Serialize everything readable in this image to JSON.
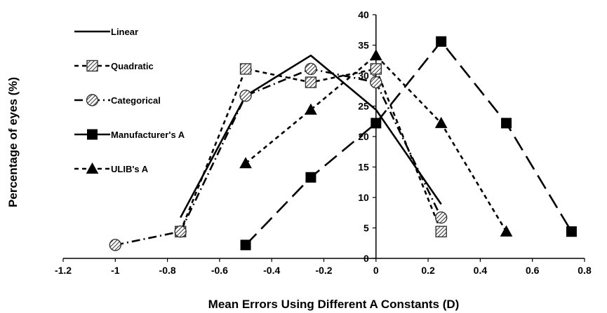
{
  "chart_data": {
    "type": "line",
    "title": "",
    "xlabel": "Mean Errors Using Different A Constants (D)",
    "ylabel": "Percentage of eyes (%)",
    "xlim": [
      -1.2,
      0.8
    ],
    "ylim": [
      0,
      40
    ],
    "xticks": [
      "-1.2",
      "-1",
      "-0.8",
      "-0.6",
      "-0.4",
      "-0.2",
      "0",
      "0.2",
      "0.4",
      "0.6",
      "0.8"
    ],
    "yticks": [
      "0",
      "5",
      "10",
      "15",
      "20",
      "25",
      "30",
      "35",
      "40"
    ],
    "grid": false,
    "legend": "top-left",
    "series": [
      {
        "name": "Linear",
        "color": "#000000",
        "dash": "solid",
        "marker": "none",
        "x": [
          -0.75,
          -0.5,
          -0.25,
          0,
          0.25
        ],
        "y": [
          6.7,
          26.7,
          33.3,
          24.4,
          8.9
        ]
      },
      {
        "name": "Quadratic",
        "color": "#000000",
        "dash": "short-dash",
        "marker": "hatched-square",
        "x": [
          -0.75,
          -0.5,
          -0.25,
          0,
          0.25
        ],
        "y": [
          4.4,
          31.1,
          28.9,
          31.1,
          4.4
        ]
      },
      {
        "name": "Categorical",
        "color": "#000000",
        "dash": "dash-dot",
        "marker": "hatched-circle",
        "x": [
          -1,
          -0.75,
          -0.5,
          -0.25,
          0,
          0.25
        ],
        "y": [
          2.2,
          4.4,
          26.7,
          31.1,
          28.9,
          6.7
        ]
      },
      {
        "name": "Manufacturer's A",
        "color": "#000000",
        "dash": "long-dash",
        "marker": "filled-square",
        "x": [
          -0.5,
          -0.25,
          0,
          0.25,
          0.5,
          0.75
        ],
        "y": [
          2.2,
          13.3,
          22.2,
          35.6,
          22.2,
          4.4
        ]
      },
      {
        "name": "ULIB's A",
        "color": "#000000",
        "dash": "short-dash",
        "marker": "filled-triangle",
        "x": [
          -0.5,
          -0.25,
          0,
          0.25,
          0.5
        ],
        "y": [
          15.6,
          24.4,
          33.3,
          22.2,
          4.4
        ]
      }
    ]
  }
}
